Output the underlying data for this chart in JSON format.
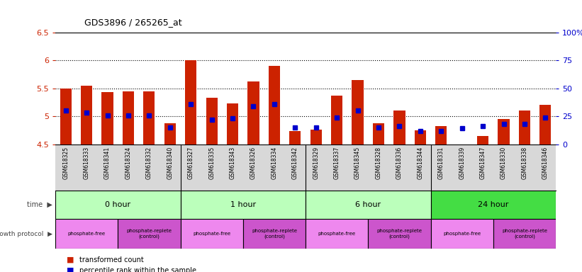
{
  "title": "GDS3896 / 265265_at",
  "samples": [
    "GSM618325",
    "GSM618333",
    "GSM618341",
    "GSM618324",
    "GSM618332",
    "GSM618340",
    "GSM618327",
    "GSM618335",
    "GSM618343",
    "GSM618326",
    "GSM618334",
    "GSM618342",
    "GSM618329",
    "GSM618337",
    "GSM618345",
    "GSM618328",
    "GSM618336",
    "GSM618344",
    "GSM618331",
    "GSM618339",
    "GSM618347",
    "GSM618330",
    "GSM618338",
    "GSM618346"
  ],
  "bar_values": [
    5.5,
    5.55,
    5.43,
    5.45,
    5.45,
    4.87,
    6.0,
    5.33,
    5.23,
    5.62,
    5.9,
    4.74,
    4.76,
    5.37,
    5.65,
    4.87,
    5.1,
    4.75,
    4.82,
    4.3,
    4.65,
    4.95,
    5.1,
    5.2
  ],
  "percentile_pct": [
    30,
    28,
    26,
    26,
    26,
    15,
    36,
    22,
    23,
    34,
    36,
    15,
    15,
    24,
    30,
    15,
    16,
    12,
    12,
    14,
    16,
    18,
    18,
    24
  ],
  "bar_bottom": 4.5,
  "ylim_left": [
    4.5,
    6.5
  ],
  "ylim_right": [
    0,
    100
  ],
  "yticks_left": [
    4.5,
    5.0,
    5.5,
    6.0,
    6.5
  ],
  "ytick_labels_left": [
    "4.5",
    "5",
    "5.5",
    "6",
    "6.5"
  ],
  "yticks_right": [
    0,
    25,
    50,
    75,
    100
  ],
  "ytick_labels_right": [
    "0",
    "25",
    "50",
    "75",
    "100%"
  ],
  "bar_color": "#cc2200",
  "percentile_color": "#0000cc",
  "grid_color": "#000000",
  "grid_values": [
    5.0,
    5.5,
    6.0
  ],
  "time_groups": [
    {
      "label": "0 hour",
      "start": 0,
      "end": 6,
      "color": "#bbffbb"
    },
    {
      "label": "1 hour",
      "start": 6,
      "end": 12,
      "color": "#bbffbb"
    },
    {
      "label": "6 hour",
      "start": 12,
      "end": 18,
      "color": "#bbffbb"
    },
    {
      "label": "24 hour",
      "start": 18,
      "end": 24,
      "color": "#44dd44"
    }
  ],
  "protocol_groups": [
    {
      "label": "phosphate-free",
      "start": 0,
      "end": 3,
      "color": "#ee88ee"
    },
    {
      "label": "phosphate-replete\n(control)",
      "start": 3,
      "end": 6,
      "color": "#cc55cc"
    },
    {
      "label": "phosphate-free",
      "start": 6,
      "end": 9,
      "color": "#ee88ee"
    },
    {
      "label": "phosphate-replete\n(control)",
      "start": 9,
      "end": 12,
      "color": "#cc55cc"
    },
    {
      "label": "phosphate-free",
      "start": 12,
      "end": 15,
      "color": "#ee88ee"
    },
    {
      "label": "phosphate-replete\n(control)",
      "start": 15,
      "end": 18,
      "color": "#cc55cc"
    },
    {
      "label": "phosphate-free",
      "start": 18,
      "end": 21,
      "color": "#ee88ee"
    },
    {
      "label": "phosphate-replete\n(control)",
      "start": 21,
      "end": 24,
      "color": "#cc55cc"
    }
  ],
  "bg_color": "#ffffff",
  "sample_bg_color": "#d8d8d8",
  "legend_items": [
    {
      "label": "transformed count",
      "color": "#cc2200",
      "marker": "s"
    },
    {
      "label": "percentile rank within the sample",
      "color": "#0000cc",
      "marker": "s"
    }
  ]
}
